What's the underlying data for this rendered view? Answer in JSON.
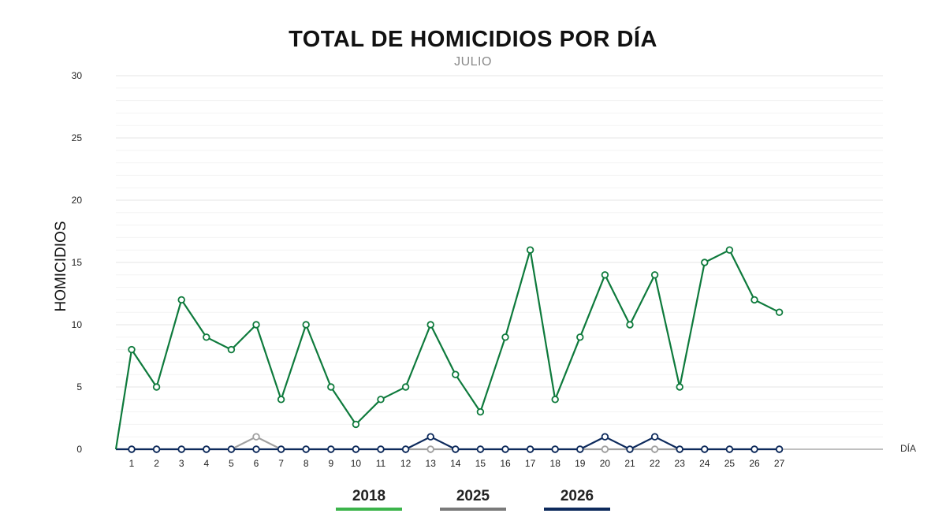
{
  "chart_data": {
    "type": "line",
    "title": "TOTAL DE HOMICIDIOS POR DÍA",
    "subtitle": "JULIO",
    "ylabel": "HOMICIDIOS",
    "xlabel": "DÍA",
    "ylim": [
      0,
      30
    ],
    "yticks": [
      0,
      5,
      10,
      15,
      20,
      25,
      30
    ],
    "x": [
      1,
      2,
      3,
      4,
      5,
      6,
      7,
      8,
      9,
      10,
      11,
      12,
      13,
      14,
      15,
      16,
      17,
      18,
      19,
      20,
      21,
      22,
      23,
      24,
      25,
      26,
      27
    ],
    "grid": true,
    "legend_position": "bottom",
    "series": [
      {
        "name": "2018",
        "color": "#0e7a3c",
        "legend_color": "#3cb44b",
        "values": [
          8,
          5,
          12,
          9,
          8,
          10,
          4,
          10,
          5,
          2,
          4,
          5,
          10,
          6,
          3,
          9,
          16,
          4,
          9,
          14,
          10,
          14,
          5,
          15,
          16,
          12,
          11
        ]
      },
      {
        "name": "2025",
        "color": "#a0a0a0",
        "legend_color": "#7a7a7a",
        "values": [
          0,
          0,
          0,
          0,
          0,
          1,
          0,
          0,
          0,
          0,
          0,
          0,
          0,
          0,
          0,
          0,
          0,
          0,
          0,
          0,
          0,
          0,
          0,
          0,
          0,
          0,
          0
        ]
      },
      {
        "name": "2026",
        "color": "#0d2a5c",
        "legend_color": "#0d2a5c",
        "values": [
          0,
          0,
          0,
          0,
          0,
          0,
          0,
          0,
          0,
          0,
          0,
          0,
          1,
          0,
          0,
          0,
          0,
          0,
          0,
          1,
          0,
          1,
          0,
          0,
          0,
          0,
          0
        ]
      }
    ]
  }
}
